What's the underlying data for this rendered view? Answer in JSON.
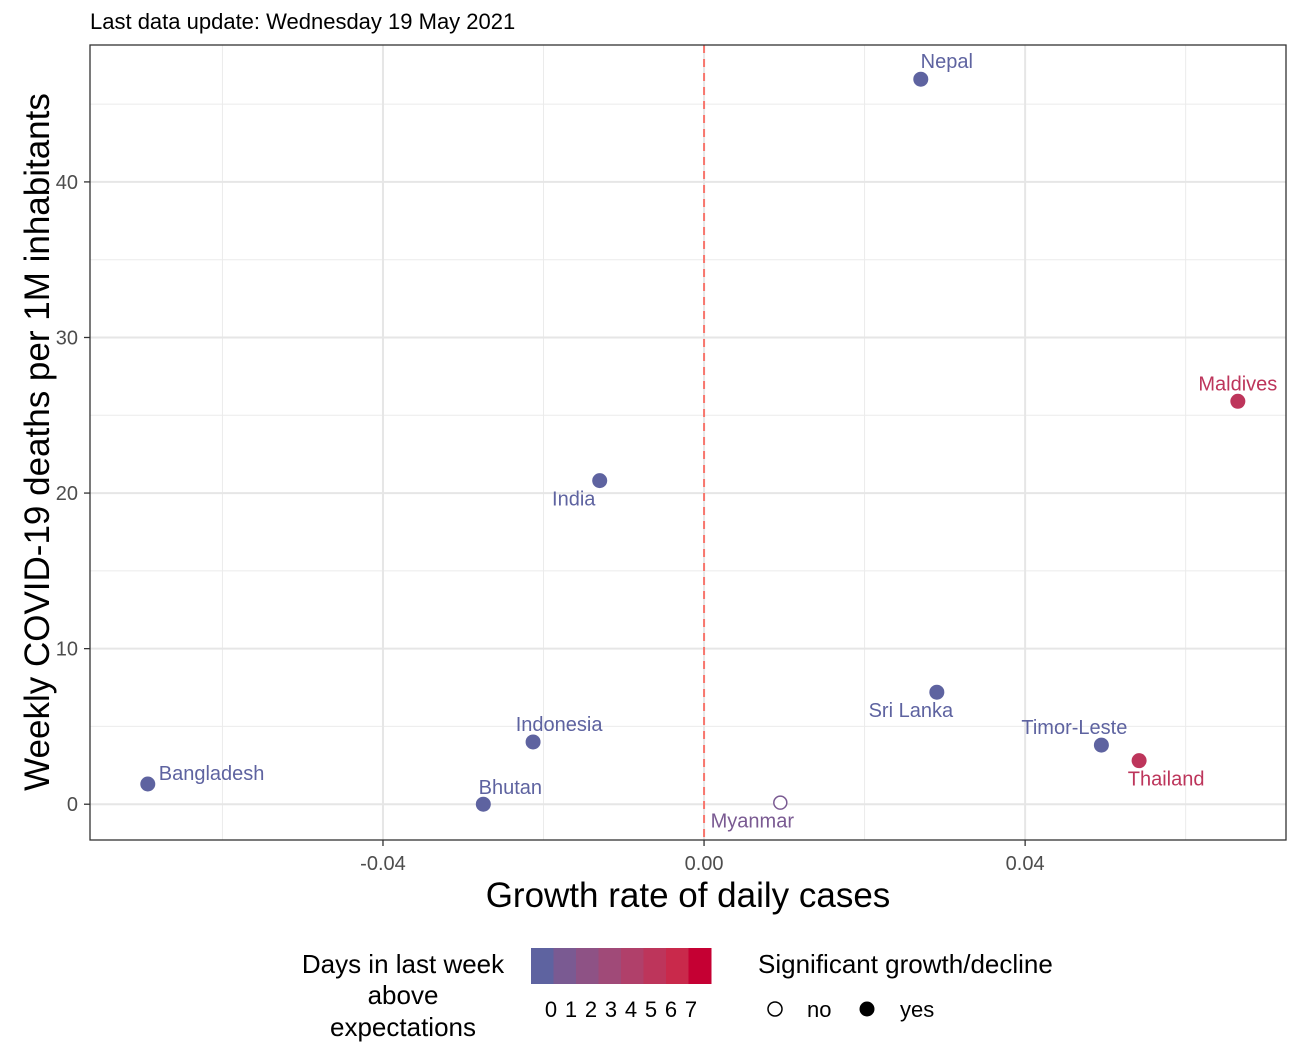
{
  "chart_data": {
    "type": "scatter",
    "title": "",
    "subtitle": "Last data update: Wednesday 19 May 2021",
    "xlabel": "Growth rate of daily cases",
    "ylabel": "Weekly COVID-19 deaths per 1M inhabitants",
    "xlim": [
      -0.0765,
      0.0725
    ],
    "ylim": [
      -2.3,
      48.8
    ],
    "x_ticks": [
      -0.04,
      0.0,
      0.04
    ],
    "x_tick_labels": [
      "-0.04",
      "0.00",
      "0.04"
    ],
    "y_ticks": [
      0,
      10,
      20,
      30,
      40
    ],
    "y_tick_labels": [
      "0",
      "10",
      "20",
      "30",
      "40"
    ],
    "grid": true,
    "reference_line": {
      "x": 0,
      "style": "dashed",
      "color": "#f8766d"
    },
    "points": [
      {
        "label": "Nepal",
        "x": 0.027,
        "y": 46.6,
        "days": 0,
        "significant": true
      },
      {
        "label": "Maldives",
        "x": 0.0665,
        "y": 25.9,
        "days": 5,
        "significant": true
      },
      {
        "label": "India",
        "x": -0.013,
        "y": 20.8,
        "days": 0,
        "significant": true
      },
      {
        "label": "Sri Lanka",
        "x": 0.029,
        "y": 7.2,
        "days": 0,
        "significant": true
      },
      {
        "label": "Timor-Leste",
        "x": 0.0495,
        "y": 3.8,
        "days": 0,
        "significant": true
      },
      {
        "label": "Thailand",
        "x": 0.0542,
        "y": 2.8,
        "days": 5,
        "significant": true
      },
      {
        "label": "Indonesia",
        "x": -0.0213,
        "y": 4.0,
        "days": 0,
        "significant": true
      },
      {
        "label": "Bangladesh",
        "x": -0.0693,
        "y": 1.3,
        "days": 0,
        "significant": true
      },
      {
        "label": "Bhutan",
        "x": -0.0275,
        "y": 0.0,
        "days": 0,
        "significant": true
      },
      {
        "label": "Myanmar",
        "x": 0.0095,
        "y": 0.1,
        "days": 1,
        "significant": false
      }
    ],
    "legend": {
      "color_title": [
        "Days in last week",
        "above",
        "expectations"
      ],
      "color_levels": [
        "0",
        "1",
        "2",
        "3",
        "4",
        "5",
        "6",
        "7"
      ],
      "color_scale": [
        "#5e63a0",
        "#7a5a92",
        "#8e5285",
        "#a04a78",
        "#b0406a",
        "#bd355b",
        "#c9294b",
        "#c50033"
      ],
      "shape_title": "Significant growth/decline",
      "shape_items": [
        "no",
        "yes"
      ],
      "placement": "bottom"
    }
  }
}
